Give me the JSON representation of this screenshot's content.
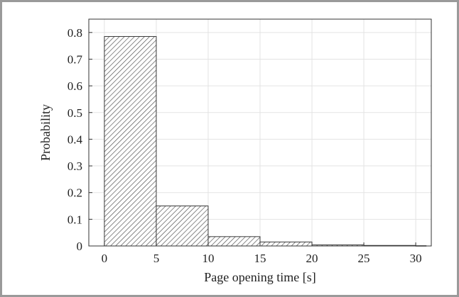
{
  "chart_data": {
    "type": "bar",
    "subtype": "histogram",
    "xlabel": "Page opening time [s]",
    "ylabel": "Probability",
    "xlim": [
      -1.5,
      31.5
    ],
    "ylim": [
      0,
      0.85
    ],
    "xticks": [
      0,
      5,
      10,
      15,
      20,
      25,
      30
    ],
    "yticks": [
      0,
      0.1,
      0.2,
      0.3,
      0.4,
      0.5,
      0.6,
      0.7,
      0.8
    ],
    "xtick_labels": [
      "0",
      "5",
      "10",
      "15",
      "20",
      "25",
      "30"
    ],
    "ytick_labels": [
      "0",
      "0.1",
      "0.2",
      "0.3",
      "0.4",
      "0.5",
      "0.6",
      "0.7",
      "0.8"
    ],
    "bins": [
      {
        "start": 0,
        "end": 5,
        "value": 0.785
      },
      {
        "start": 5,
        "end": 10,
        "value": 0.15
      },
      {
        "start": 10,
        "end": 15,
        "value": 0.035
      },
      {
        "start": 15,
        "end": 20,
        "value": 0.015
      },
      {
        "start": 20,
        "end": 25,
        "value": 0.004
      },
      {
        "start": 25,
        "end": 30,
        "value": 0.002
      },
      {
        "start": 30,
        "end": 31,
        "value": 0.001
      }
    ],
    "grid": true,
    "bar_fill": "hatched",
    "bar_edge_color": "#3a3a3a",
    "hatch_color": "#4a4a4a",
    "grid_color": "#e3e3e3",
    "axis_color": "#333333"
  }
}
